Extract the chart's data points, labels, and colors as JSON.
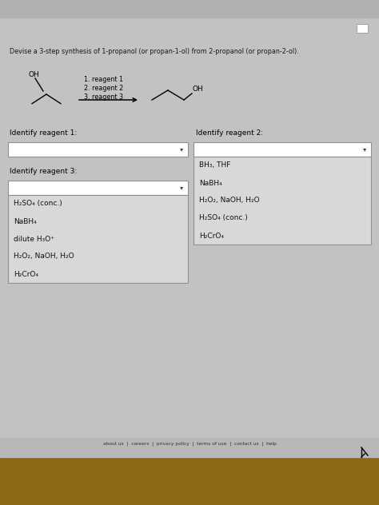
{
  "bg_color": "#c2c2c2",
  "top_bar_color": "#b0b0b0",
  "title_text": "Devise a 3-step synthesis of 1-propanol (or propan-1-ol) from 2-propanol (or propan-2-ol).",
  "reagents_label": "1. reagent 1\n2. reagent 2\n3. reagent 3",
  "identify_reagent1": "Identify reagent 1:",
  "identify_reagent2": "Identify reagent 2:",
  "identify_reagent3": "Identify reagent 3:",
  "reagent2_options": [
    "BH₃, THF",
    "NaBH₄",
    "H₂O₂, NaOH, H₂O",
    "H₂SO₄ (conc.)",
    "H₂CrO₄"
  ],
  "reagent3_options": [
    "H₂SO₄ (conc.)",
    "NaBH₄",
    "dilute H₃O⁺",
    "H₂O₂, NaOH, H₂O",
    "H₂CrO₄"
  ],
  "dropdown_bg": "#dcdcdc",
  "dropdown_border": "#909090",
  "list_bg": "#d8d8d8",
  "white_box": "#ffffff",
  "footer_bg": "#b8b8b8",
  "footer_links": "about us  |  careers  |  privacy policy  |  terms of use  |  contact us  |  help",
  "text_color": "#1a1a1a"
}
